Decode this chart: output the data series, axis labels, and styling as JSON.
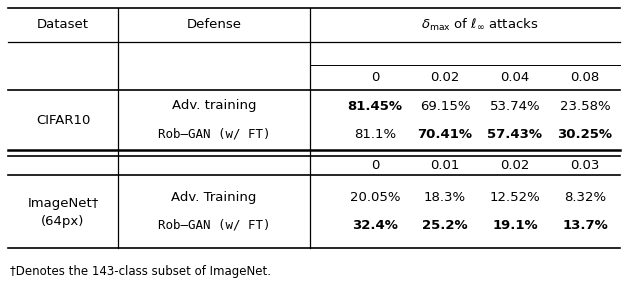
{
  "title_col1": "Dataset",
  "title_col2": "Defense",
  "title_span": "$\\delta_{\\max}$ of $\\ell_{\\infty}$ attacks",
  "cifar_cols": [
    "0",
    "0.02",
    "0.04",
    "0.08"
  ],
  "imagenet_cols": [
    "0",
    "0.01",
    "0.02",
    "0.03"
  ],
  "cifar_row1_label": "Adv. training",
  "cifar_row2_label": "Rob–GAN (w/ FT)",
  "cifar_row1_vals": [
    "81.45%",
    "69.15%",
    "53.74%",
    "23.58%"
  ],
  "cifar_row1_bold": [
    true,
    false,
    false,
    false
  ],
  "cifar_row2_vals": [
    "81.1%",
    "70.41%",
    "57.43%",
    "30.25%"
  ],
  "cifar_row2_bold": [
    false,
    true,
    true,
    true
  ],
  "imagenet_row1_label": "Adv. Training",
  "imagenet_row2_label": "Rob–GAN (w/ FT)",
  "imagenet_row1_vals": [
    "20.05%",
    "18.3%",
    "12.52%",
    "8.32%"
  ],
  "imagenet_row1_bold": [
    false,
    false,
    false,
    false
  ],
  "imagenet_row2_vals": [
    "32.4%",
    "25.2%",
    "19.1%",
    "13.7%"
  ],
  "imagenet_row2_bold": [
    true,
    true,
    true,
    true
  ],
  "dataset_cifar": "CIFAR10",
  "dataset_imagenet_line1": "ImageNet†",
  "dataset_imagenet_line2": "(64px)",
  "footnote": "†Denotes the 143-class subset of ImageNet.",
  "bg_color": "#ffffff",
  "text_color": "#000000"
}
